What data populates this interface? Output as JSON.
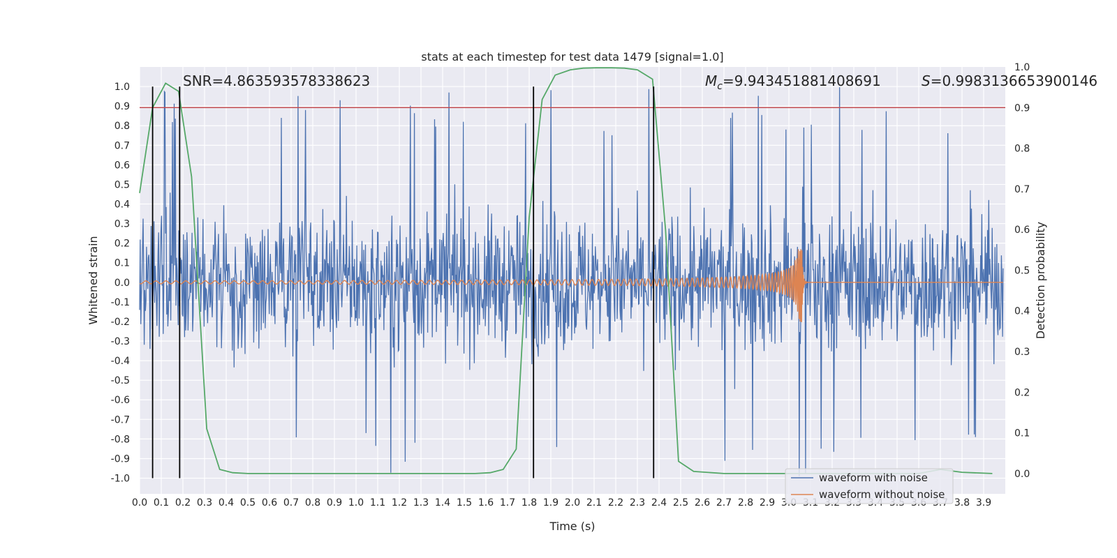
{
  "chart_data": {
    "type": "line",
    "title": "stats at each timestep for test data 1479 [signal=1.0]",
    "xlabel": "Time (s)",
    "ylabel_left": "Whitened strain",
    "ylabel_right": "Detection probability",
    "xlim": [
      0.0,
      4.0
    ],
    "ylim_left": [
      -1.08,
      1.1
    ],
    "ylim_right": [
      -0.05,
      1.0
    ],
    "x_ticks": [
      "0.0",
      "0.1",
      "0.2",
      "0.3",
      "0.4",
      "0.5",
      "0.6",
      "0.7",
      "0.8",
      "0.9",
      "1.0",
      "1.1",
      "1.2",
      "1.3",
      "1.4",
      "1.5",
      "1.6",
      "1.7",
      "1.8",
      "1.9",
      "2.0",
      "2.1",
      "2.2",
      "2.3",
      "2.4",
      "2.5",
      "2.6",
      "2.7",
      "2.8",
      "2.9",
      "3.0",
      "3.1",
      "3.2",
      "3.3",
      "3.4",
      "3.5",
      "3.6",
      "3.7",
      "3.8",
      "3.9"
    ],
    "y_left_ticks": [
      "1.0",
      "0.9",
      "0.8",
      "0.7",
      "0.6",
      "0.5",
      "0.4",
      "0.3",
      "0.2",
      "0.1",
      "0.0",
      "-0.1",
      "-0.2",
      "-0.3",
      "-0.4",
      "-0.5",
      "-0.6",
      "-0.7",
      "-0.8",
      "-0.9",
      "-1.0"
    ],
    "y_right_ticks": [
      "1.0",
      "0.9",
      "0.8",
      "0.7",
      "0.6",
      "0.5",
      "0.4",
      "0.3",
      "0.2",
      "0.1",
      "0.0"
    ],
    "annotations": {
      "snr": "SNR=4.863593578338623",
      "mc_symbol": "M",
      "mc_sub": "c",
      "mc_value": "=9.943451881408691",
      "s_symbol": "S",
      "s_value": "=0.9983136653900146"
    },
    "threshold": 0.9,
    "vertical_lines_s": [
      0.06,
      0.185,
      1.82,
      2.375
    ],
    "series": [
      {
        "name": "waveform with noise",
        "color": "#4c72b0",
        "description": "noisy whitened strain, roughly +/-0.6 with spikes up to +/-1.0"
      },
      {
        "name": "waveform without noise",
        "color": "#dd8452",
        "description": "chirp signal growing in amplitude, merger near t=3.05 s"
      },
      {
        "name": "detection probability",
        "color": "#55a868",
        "axis": "right",
        "x": [
          0.0,
          0.06,
          0.12,
          0.18,
          0.24,
          0.31,
          0.37,
          0.43,
          0.5,
          0.6,
          0.8,
          1.0,
          1.2,
          1.4,
          1.55,
          1.62,
          1.68,
          1.74,
          1.8,
          1.86,
          1.92,
          1.99,
          2.05,
          2.11,
          2.18,
          2.24,
          2.3,
          2.37,
          2.43,
          2.49,
          2.56,
          2.7,
          3.0,
          3.3,
          3.6,
          3.7,
          3.8,
          3.94
        ],
        "values": [
          0.69,
          0.9,
          0.96,
          0.94,
          0.73,
          0.11,
          0.01,
          0.002,
          0.0,
          0.0,
          0.0,
          0.0,
          0.0,
          0.0,
          0.0,
          0.002,
          0.01,
          0.06,
          0.63,
          0.92,
          0.98,
          0.993,
          0.997,
          0.998,
          0.998,
          0.997,
          0.993,
          0.97,
          0.6,
          0.03,
          0.005,
          0.0,
          0.0,
          0.0,
          0.0,
          0.01,
          0.003,
          0.0
        ]
      }
    ],
    "legend": {
      "position": "lower-right",
      "entries": [
        {
          "label": "waveform with noise",
          "color": "#4c72b0"
        },
        {
          "label": "waveform without noise",
          "color": "#dd8452"
        }
      ]
    },
    "colors": {
      "plot_bg": "#eaeaf2",
      "grid": "#ffffff",
      "threshold": "#c44e52",
      "vline": "#000000"
    }
  }
}
